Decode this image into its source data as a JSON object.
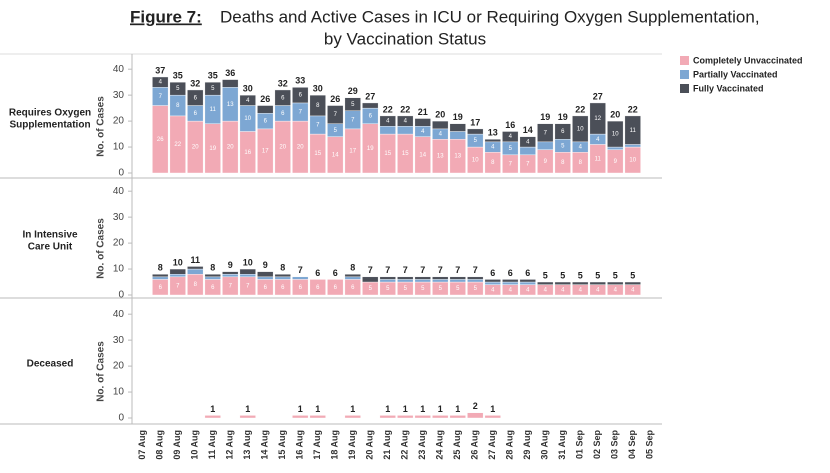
{
  "header": {
    "figure_label": "Figure 7:",
    "title_line1": "Deaths and Active Cases in ICU or Requiring Oxygen Supplementation,",
    "title_line2": "by Vaccination Status"
  },
  "chart_data": [
    {
      "type": "stacked_bar",
      "panel_label": "Requires Oxygen Supplementation",
      "y_label": "No. of Cases",
      "categories": [
        "07 Aug",
        "08 Aug",
        "09 Aug",
        "10 Aug",
        "11 Aug",
        "12 Aug",
        "13 Aug",
        "14 Aug",
        "15 Aug",
        "16 Aug",
        "17 Aug",
        "18 Aug",
        "19 Aug",
        "20 Aug",
        "21 Aug",
        "22 Aug",
        "23 Aug",
        "24 Aug",
        "25 Aug",
        "26 Aug",
        "27 Aug",
        "28 Aug",
        "29 Aug",
        "30 Aug",
        "31 Aug",
        "01 Sep",
        "02 Sep",
        "03 Sep",
        "04 Sep",
        "05 Sep"
      ],
      "ylim": [
        0,
        42
      ],
      "yticks": [
        0,
        10,
        20,
        30,
        40
      ],
      "series": [
        {
          "name": "Completely Unvaccinated",
          "color": "#f2aab5",
          "values": [
            null,
            26,
            22,
            20,
            19,
            20,
            16,
            17,
            20,
            20,
            15,
            14,
            17,
            19,
            15,
            15,
            14,
            13,
            13,
            10,
            8,
            7,
            7,
            9,
            8,
            8,
            11,
            9,
            10,
            null
          ]
        },
        {
          "name": "Partially Vaccinated",
          "color": "#7da7d3",
          "values": [
            null,
            7,
            8,
            6,
            11,
            13,
            10,
            6,
            6,
            7,
            7,
            5,
            7,
            6,
            3,
            3,
            4,
            4,
            3,
            5,
            4,
            5,
            3,
            3,
            5,
            4,
            4,
            1,
            1,
            null
          ]
        },
        {
          "name": "Fully Vaccinated",
          "color": "#4b4f58",
          "values": [
            null,
            4,
            5,
            6,
            5,
            3,
            4,
            3,
            6,
            6,
            8,
            7,
            5,
            2,
            4,
            4,
            3,
            3,
            3,
            2,
            1,
            4,
            4,
            7,
            6,
            10,
            12,
            10,
            11,
            null
          ]
        }
      ],
      "totals": [
        null,
        37,
        35,
        32,
        35,
        36,
        30,
        26,
        32,
        33,
        30,
        26,
        29,
        27,
        22,
        22,
        21,
        20,
        19,
        17,
        13,
        16,
        14,
        19,
        19,
        22,
        27,
        20,
        22,
        null
      ]
    },
    {
      "type": "stacked_bar",
      "panel_label": "In Intensive Care Unit",
      "y_label": "No. of Cases",
      "categories": [
        "07 Aug",
        "08 Aug",
        "09 Aug",
        "10 Aug",
        "11 Aug",
        "12 Aug",
        "13 Aug",
        "14 Aug",
        "15 Aug",
        "16 Aug",
        "17 Aug",
        "18 Aug",
        "19 Aug",
        "20 Aug",
        "21 Aug",
        "22 Aug",
        "23 Aug",
        "24 Aug",
        "25 Aug",
        "26 Aug",
        "27 Aug",
        "28 Aug",
        "29 Aug",
        "30 Aug",
        "31 Aug",
        "01 Sep",
        "02 Sep",
        "03 Sep",
        "04 Sep",
        "05 Sep"
      ],
      "ylim": [
        0,
        42
      ],
      "yticks": [
        0,
        10,
        20,
        30,
        40
      ],
      "series": [
        {
          "name": "Completely Unvaccinated",
          "color": "#f2aab5",
          "values": [
            null,
            6,
            7,
            8,
            6,
            7,
            7,
            6,
            6,
            6,
            6,
            6,
            6,
            5,
            5,
            5,
            5,
            5,
            5,
            5,
            4,
            4,
            4,
            4,
            4,
            4,
            4,
            4,
            4,
            null
          ]
        },
        {
          "name": "Partially Vaccinated",
          "color": "#7da7d3",
          "values": [
            null,
            1,
            1,
            2,
            1,
            1,
            1,
            1,
            1,
            1,
            0,
            0,
            1,
            0,
            1,
            1,
            1,
            1,
            1,
            1,
            1,
            1,
            1,
            0,
            0,
            0,
            0,
            0,
            0,
            null
          ]
        },
        {
          "name": "Fully Vaccinated",
          "color": "#4b4f58",
          "values": [
            null,
            1,
            2,
            1,
            1,
            1,
            2,
            2,
            1,
            0,
            0,
            0,
            1,
            2,
            1,
            1,
            1,
            1,
            1,
            1,
            1,
            1,
            1,
            1,
            1,
            1,
            1,
            1,
            1,
            null
          ]
        }
      ],
      "totals": [
        null,
        8,
        10,
        11,
        8,
        9,
        10,
        9,
        8,
        7,
        6,
        6,
        8,
        7,
        7,
        7,
        7,
        7,
        7,
        7,
        6,
        6,
        6,
        5,
        5,
        5,
        5,
        5,
        5,
        null
      ]
    },
    {
      "type": "stacked_bar",
      "panel_label": "Deceased",
      "y_label": "No. of Cases",
      "categories": [
        "07 Aug",
        "08 Aug",
        "09 Aug",
        "10 Aug",
        "11 Aug",
        "12 Aug",
        "13 Aug",
        "14 Aug",
        "15 Aug",
        "16 Aug",
        "17 Aug",
        "18 Aug",
        "19 Aug",
        "20 Aug",
        "21 Aug",
        "22 Aug",
        "23 Aug",
        "24 Aug",
        "25 Aug",
        "26 Aug",
        "27 Aug",
        "28 Aug",
        "29 Aug",
        "30 Aug",
        "31 Aug",
        "01 Sep",
        "02 Sep",
        "03 Sep",
        "04 Sep",
        "05 Sep"
      ],
      "ylim": [
        0,
        42
      ],
      "yticks": [
        0,
        10,
        20,
        30,
        40
      ],
      "series": [
        {
          "name": "Completely Unvaccinated",
          "color": "#f2aab5",
          "values": [
            null,
            null,
            null,
            null,
            1,
            null,
            1,
            null,
            null,
            1,
            1,
            null,
            1,
            null,
            1,
            1,
            1,
            1,
            1,
            2,
            1,
            null,
            null,
            null,
            null,
            null,
            null,
            null,
            null,
            null
          ]
        }
      ],
      "totals": [
        null,
        null,
        null,
        null,
        1,
        null,
        1,
        null,
        null,
        1,
        1,
        null,
        1,
        null,
        1,
        1,
        1,
        1,
        1,
        2,
        1,
        null,
        null,
        null,
        null,
        null,
        null,
        null,
        null,
        null
      ]
    }
  ]
}
